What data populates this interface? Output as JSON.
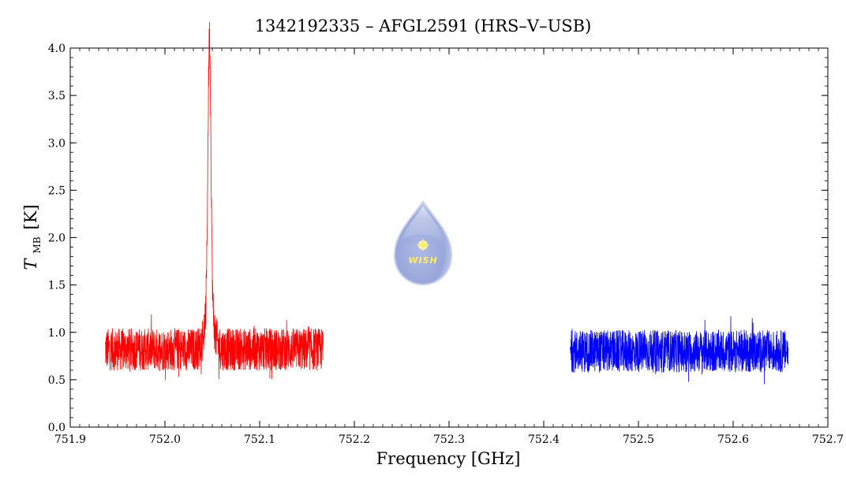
{
  "chart_data": {
    "type": "line",
    "title": "1342192335 – AFGL2591 (HRS–V–USB)",
    "xlabel": "Frequency [GHz]",
    "ylabel": {
      "symbol": "T",
      "subscript": "MB",
      "unit": "[K]"
    },
    "xlim": [
      751.9,
      752.7
    ],
    "ylim": [
      0.0,
      4.0
    ],
    "x_ticks": [
      "751.9",
      "752.0",
      "752.1",
      "752.2",
      "752.3",
      "752.4",
      "752.5",
      "752.6",
      "752.7"
    ],
    "y_ticks": [
      "0.0",
      "0.5",
      "1.0",
      "1.5",
      "2.0",
      "2.5",
      "3.0",
      "3.5",
      "4.0"
    ],
    "grid": false,
    "logo_text": "WISH",
    "series": [
      {
        "color": "#ff0000",
        "x_range": [
          751.937,
          752.167
        ],
        "baseline": 0.82,
        "noise_amplitude": 0.28,
        "line_peak": {
          "x": 752.047,
          "y": 3.8
        }
      },
      {
        "color": "#0000ff",
        "x_range": [
          752.428,
          752.658
        ],
        "baseline": 0.8,
        "noise_amplitude": 0.28
      }
    ]
  }
}
